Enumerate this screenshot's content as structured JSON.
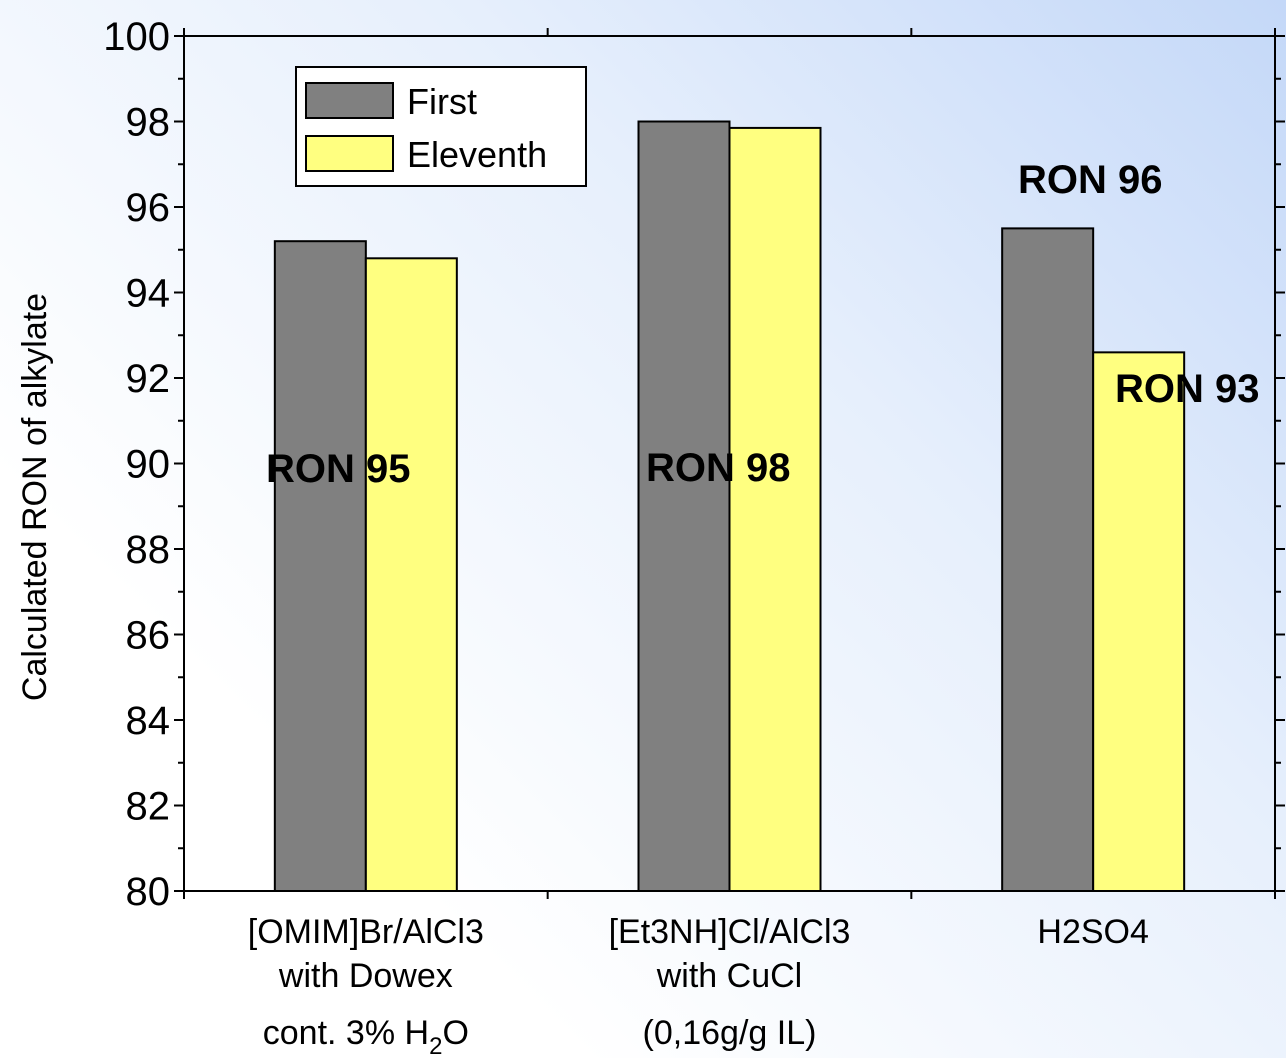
{
  "chart_data": {
    "type": "bar",
    "title": "",
    "ylabel": "Calculated RON of alkylate",
    "xlabel": "",
    "ylim": [
      80,
      100
    ],
    "yticks": [
      "80",
      "82",
      "84",
      "86",
      "88",
      "90",
      "92",
      "94",
      "96",
      "98",
      "100"
    ],
    "categories": [
      {
        "lines": [
          "[OMIM]Br/AlCl3",
          "with Dowex"
        ],
        "line3_prefix": "cont. 3% H",
        "line3_sub": "2",
        "line3_suffix": "O"
      },
      {
        "lines": [
          "[Et3NH]Cl/AlCl3",
          "with CuCl"
        ],
        "line3_prefix": "(0,16g/g IL)",
        "line3_sub": "",
        "line3_suffix": ""
      },
      {
        "lines": [
          "H2SO4"
        ],
        "line3_prefix": "",
        "line3_sub": "",
        "line3_suffix": ""
      }
    ],
    "series": [
      {
        "name": "First",
        "color": "#808080",
        "values": [
          95.2,
          98.0,
          95.5
        ]
      },
      {
        "name": "Eleventh",
        "color": "#ffff80",
        "values": [
          94.8,
          97.85,
          92.6
        ]
      }
    ],
    "annotations": [
      "RON 95",
      "RON 98",
      "RON 96",
      "RON 93"
    ],
    "legend_position": "top-left",
    "grid": false
  }
}
